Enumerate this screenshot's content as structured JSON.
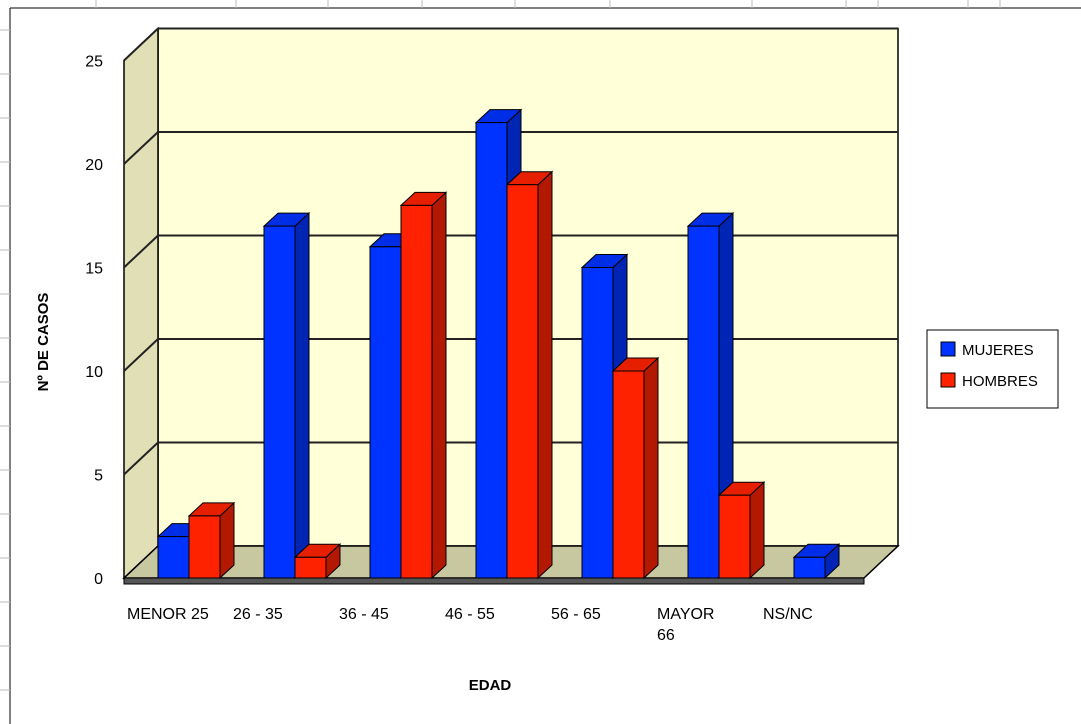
{
  "chart_data": {
    "type": "bar",
    "style": "3d-clustered-column",
    "categories": [
      [
        "MENOR 25"
      ],
      [
        "26 - 35"
      ],
      [
        "36 - 45"
      ],
      [
        "46 - 55"
      ],
      [
        "56 - 65"
      ],
      [
        "MAYOR",
        "66"
      ],
      [
        "NS/NC"
      ]
    ],
    "series": [
      {
        "name": "MUJERES",
        "color": "#0033ff",
        "values": [
          2,
          17,
          16,
          22,
          15,
          17,
          1
        ]
      },
      {
        "name": "HOMBRES",
        "color": "#ff2200",
        "values": [
          3,
          1,
          18,
          19,
          10,
          4,
          0
        ]
      }
    ],
    "xlabel": "EDAD",
    "ylabel": "Nº DE CASOS",
    "ylim": [
      0,
      25
    ],
    "yticks": [
      0,
      5,
      10,
      15,
      20,
      25
    ],
    "grid": true,
    "legend_position": "right",
    "colors": {
      "wall": "#ffffd8",
      "side_wall": "#e0dfb6",
      "floor": "#c8c8a0",
      "grid": "#222222"
    }
  }
}
